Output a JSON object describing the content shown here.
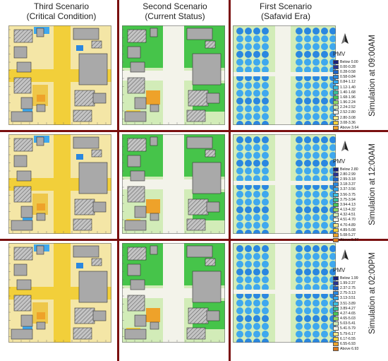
{
  "headers": [
    {
      "line1": "Third Scenario",
      "line2": "(Critical Condition)"
    },
    {
      "line1": "Second Scenario",
      "line2": "(Current Status)"
    },
    {
      "line1": "First Scenario",
      "line2": "(Safavid Era)"
    }
  ],
  "rows": [
    {
      "time_label": "Simulation at 09:00AM",
      "legend": {
        "title": "PMV",
        "items": [
          {
            "label": "Below 0.00",
            "color": "#1a237e"
          },
          {
            "label": "0.00-0.28",
            "color": "#283593"
          },
          {
            "label": "0.28-0.58",
            "color": "#1e63c8"
          },
          {
            "label": "0.58-0.84",
            "color": "#2a87e0"
          },
          {
            "label": "0.84-1.12",
            "color": "#33a6ee"
          },
          {
            "label": "1.12-1.40",
            "color": "#3fbfe0"
          },
          {
            "label": "1.40-1.68",
            "color": "#3bbf9a"
          },
          {
            "label": "1.68-1.96",
            "color": "#47c45a"
          },
          {
            "label": "1.96-2.24",
            "color": "#8fd86a"
          },
          {
            "label": "2.24-2.52",
            "color": "#d2ecb8"
          },
          {
            "label": "2.52-2.80",
            "color": "#f3f3ea"
          },
          {
            "label": "2.80-3.08",
            "color": "#f7e98a"
          },
          {
            "label": "3.08-3.36",
            "color": "#f4d23e"
          },
          {
            "label": "Above 3.64",
            "color": "#eea22a"
          }
        ]
      }
    },
    {
      "time_label": "Simulation at 12:00AM",
      "legend": {
        "title": "PMV",
        "items": [
          {
            "label": "Below 2.80",
            "color": "#1a237e"
          },
          {
            "label": "2.80-2.99",
            "color": "#283593"
          },
          {
            "label": "2.99-3.18",
            "color": "#1e63c8"
          },
          {
            "label": "3.18-3.37",
            "color": "#2a87e0"
          },
          {
            "label": "3.37-3.56",
            "color": "#33a6ee"
          },
          {
            "label": "3.56-3.75",
            "color": "#3fbfe0"
          },
          {
            "label": "3.75-3.94",
            "color": "#3bbf9a"
          },
          {
            "label": "3.94-4.13",
            "color": "#47c45a"
          },
          {
            "label": "4.13-4.32",
            "color": "#8fd86a"
          },
          {
            "label": "4.32-4.51",
            "color": "#d2ecb8"
          },
          {
            "label": "4.51-4.70",
            "color": "#f3f3ea"
          },
          {
            "label": "4.70-4.89",
            "color": "#f7e98a"
          },
          {
            "label": "4.89-5.08",
            "color": "#f4d23e"
          },
          {
            "label": "5.08-5.27",
            "color": "#eea22a"
          },
          {
            "label": "Above 5.27",
            "color": "#e07818"
          }
        ]
      }
    },
    {
      "time_label": "Simulation at 02:00PM",
      "legend": {
        "title": "PMV",
        "items": [
          {
            "label": "Below 1.99",
            "color": "#1a237e"
          },
          {
            "label": "1.99-2.37",
            "color": "#283593"
          },
          {
            "label": "2.37-2.75",
            "color": "#1e63c8"
          },
          {
            "label": "2.75-3.13",
            "color": "#2a87e0"
          },
          {
            "label": "3.13-3.51",
            "color": "#33a6ee"
          },
          {
            "label": "3.51-3.89",
            "color": "#3fbfe0"
          },
          {
            "label": "3.89-4.27",
            "color": "#3bbf9a"
          },
          {
            "label": "4.27-4.65",
            "color": "#47c45a"
          },
          {
            "label": "4.65-5.03",
            "color": "#8fd86a"
          },
          {
            "label": "5.03-5.41",
            "color": "#d2ecb8"
          },
          {
            "label": "5.41-5.79",
            "color": "#f3f3ea"
          },
          {
            "label": "5.79-6.17",
            "color": "#f7e98a"
          },
          {
            "label": "6.17-6.55",
            "color": "#f4d23e"
          },
          {
            "label": "6.55-6.93",
            "color": "#eea22a"
          },
          {
            "label": "Above 6.93",
            "color": "#e07818"
          }
        ]
      }
    }
  ],
  "colors": {
    "divider": "#7a1010",
    "building": "#a9a9a9",
    "hatch": "#555555",
    "third_ground": "#f2cf3a",
    "second_ground": "#46c44a",
    "first_ground": "#3fa8ee"
  },
  "icons": {
    "north_arrow": "north-arrow-icon"
  }
}
